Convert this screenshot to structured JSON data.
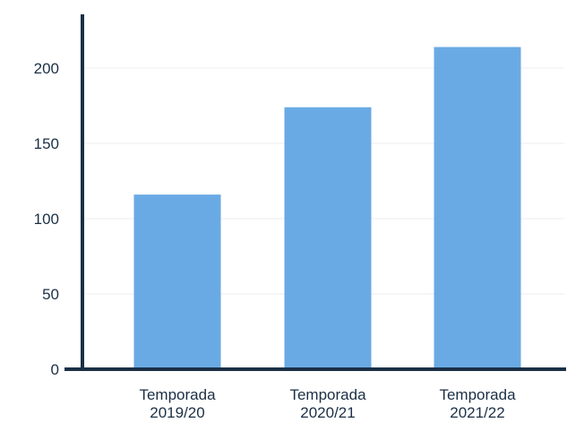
{
  "chart_data": {
    "type": "bar",
    "title": "",
    "xlabel": "",
    "ylabel": "",
    "categories": [
      [
        "Temporada",
        "2019/20"
      ],
      [
        "Temporada",
        "2020/21"
      ],
      [
        "Temporada",
        "2021/22"
      ]
    ],
    "values": [
      116,
      174,
      214
    ],
    "ylim": [
      0,
      230
    ],
    "yticks": [
      0,
      50,
      100,
      150,
      200
    ],
    "grid": true,
    "legend": "none",
    "colors": {
      "bar": "#6aaae4",
      "axis": "#1b2f45",
      "grid": "#ececec",
      "text": "#1b2f45"
    }
  }
}
